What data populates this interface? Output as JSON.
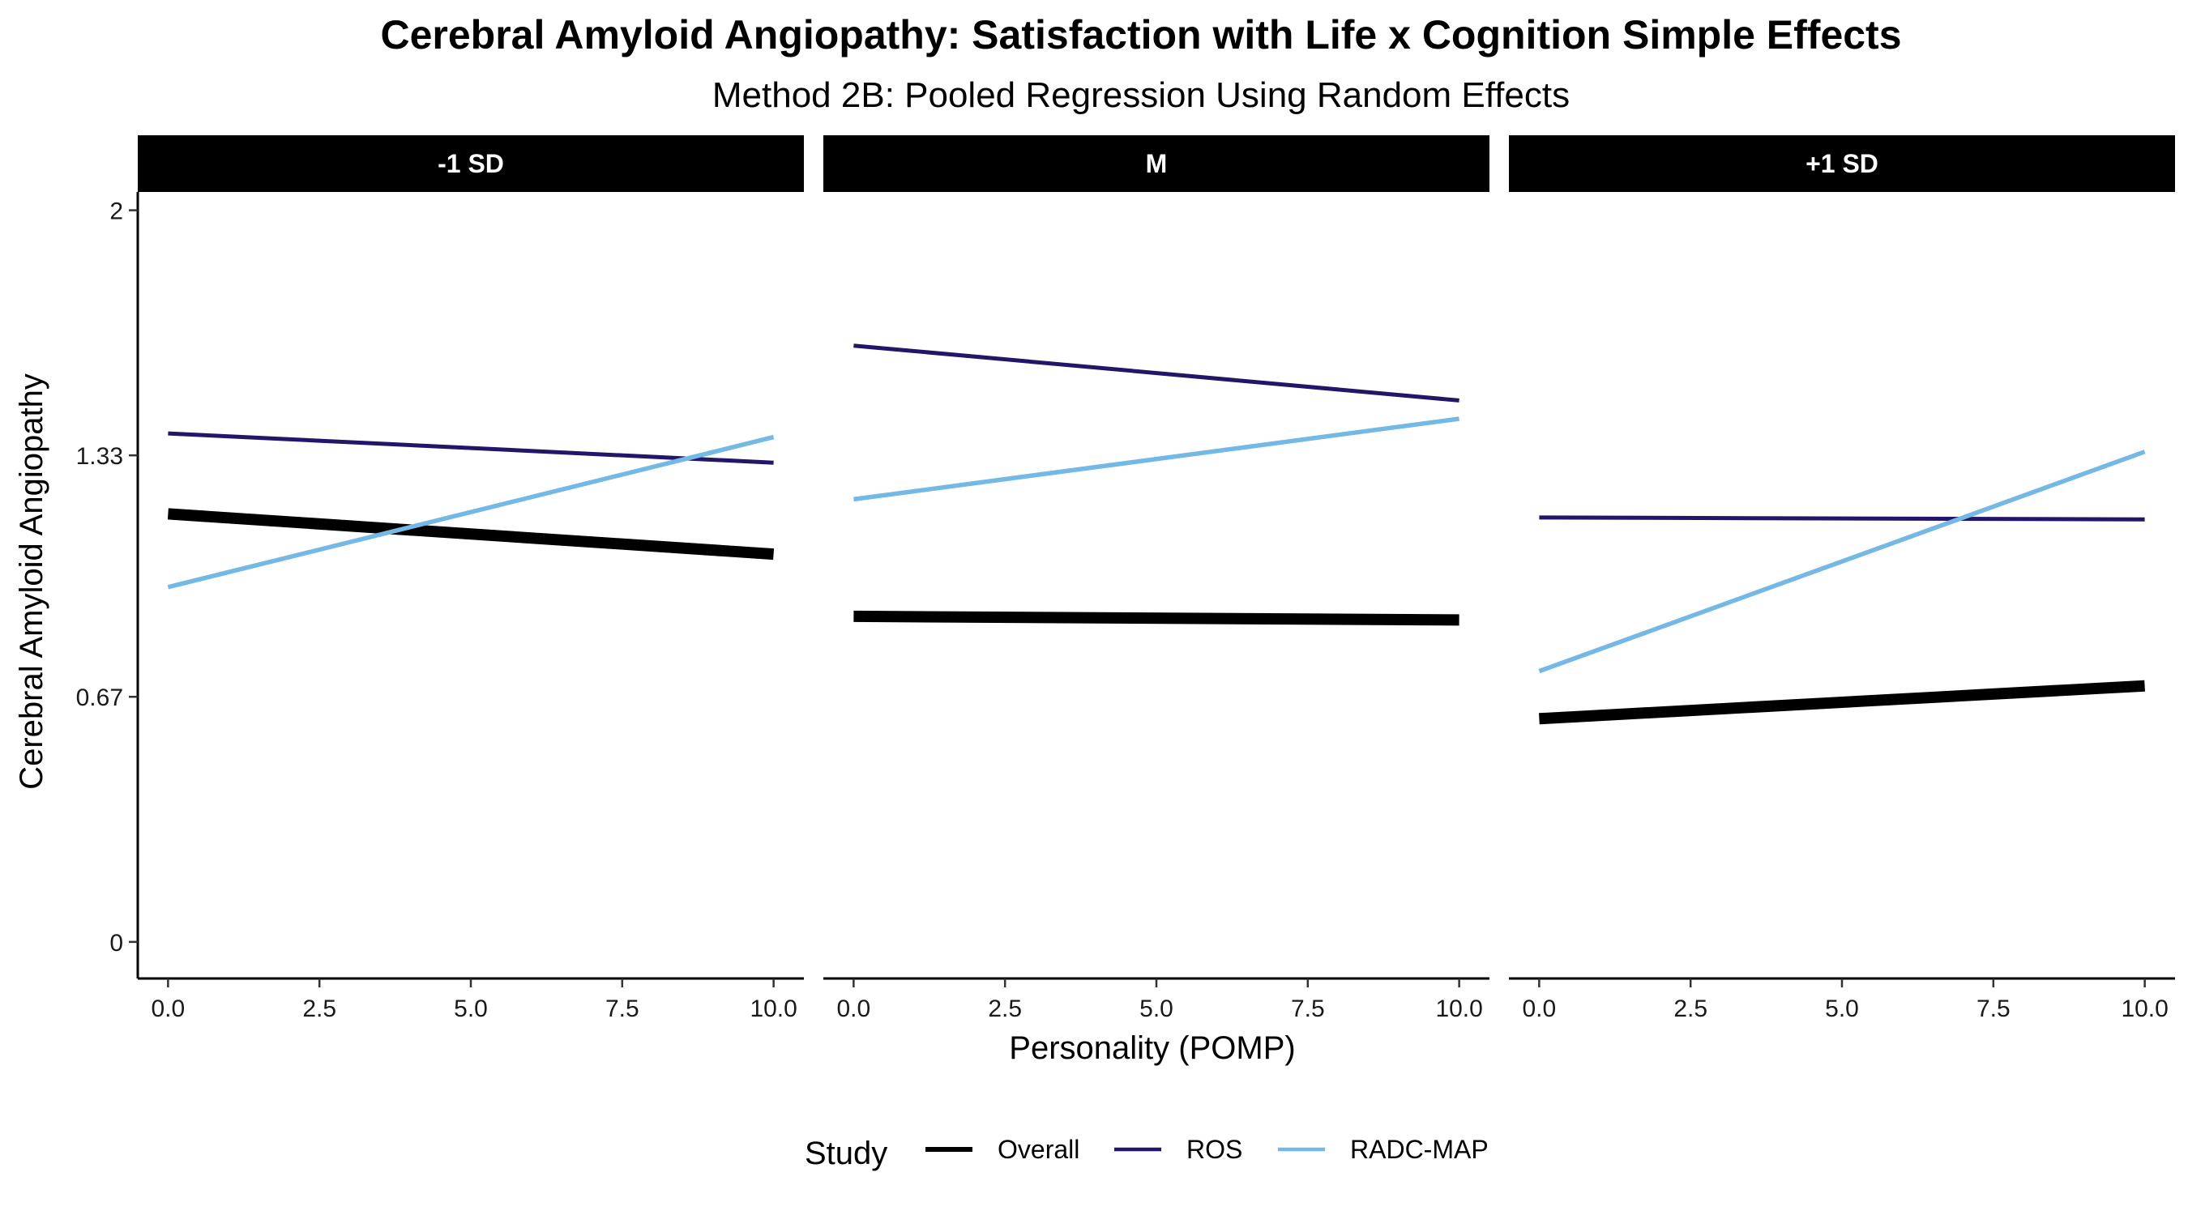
{
  "chart_data": {
    "type": "line",
    "title": "Cerebral Amyloid Angiopathy: Satisfaction with Life x Cognition Simple Effects",
    "subtitle": "Method 2B: Pooled Regression Using Random Effects",
    "xlabel": "Personality (POMP)",
    "ylabel": "Cerebral Amyloid Angiopathy",
    "xlim": [
      -0.5,
      10.5
    ],
    "ylim": [
      -0.1,
      2.05
    ],
    "x_ticks": [
      0,
      2.5,
      5,
      7.5,
      10
    ],
    "x_tick_labels": [
      "0.0",
      "2.5",
      "5.0",
      "7.5",
      "10.0"
    ],
    "y_ticks": [
      0,
      0.67,
      1.33,
      2
    ],
    "y_tick_labels": [
      "0",
      "0.67",
      "1.33",
      "2"
    ],
    "legend": {
      "title": "Study",
      "position": "bottom",
      "entries": [
        "Overall",
        "ROS",
        "RADC-MAP"
      ]
    },
    "grid": false,
    "colors": {
      "Overall": "#000000",
      "ROS": "#231567",
      "RADC-MAP": "#74b8e6"
    },
    "panels": [
      {
        "label": "-1 SD",
        "series": [
          {
            "name": "Overall",
            "x": [
              0,
              10
            ],
            "y": [
              1.17,
              1.06
            ]
          },
          {
            "name": "ROS",
            "x": [
              0,
              10
            ],
            "y": [
              1.39,
              1.31
            ]
          },
          {
            "name": "RADC-MAP",
            "x": [
              0,
              10
            ],
            "y": [
              0.97,
              1.38
            ]
          }
        ]
      },
      {
        "label": "M",
        "series": [
          {
            "name": "Overall",
            "x": [
              0,
              10
            ],
            "y": [
              0.89,
              0.88
            ]
          },
          {
            "name": "ROS",
            "x": [
              0,
              10
            ],
            "y": [
              1.63,
              1.48
            ]
          },
          {
            "name": "RADC-MAP",
            "x": [
              0,
              10
            ],
            "y": [
              1.21,
              1.43
            ]
          }
        ]
      },
      {
        "label": "+1 SD",
        "series": [
          {
            "name": "Overall",
            "x": [
              0,
              10
            ],
            "y": [
              0.61,
              0.7
            ]
          },
          {
            "name": "ROS",
            "x": [
              0,
              10
            ],
            "y": [
              1.16,
              1.155
            ]
          },
          {
            "name": "RADC-MAP",
            "x": [
              0,
              10
            ],
            "y": [
              0.74,
              1.34
            ]
          }
        ]
      }
    ]
  }
}
